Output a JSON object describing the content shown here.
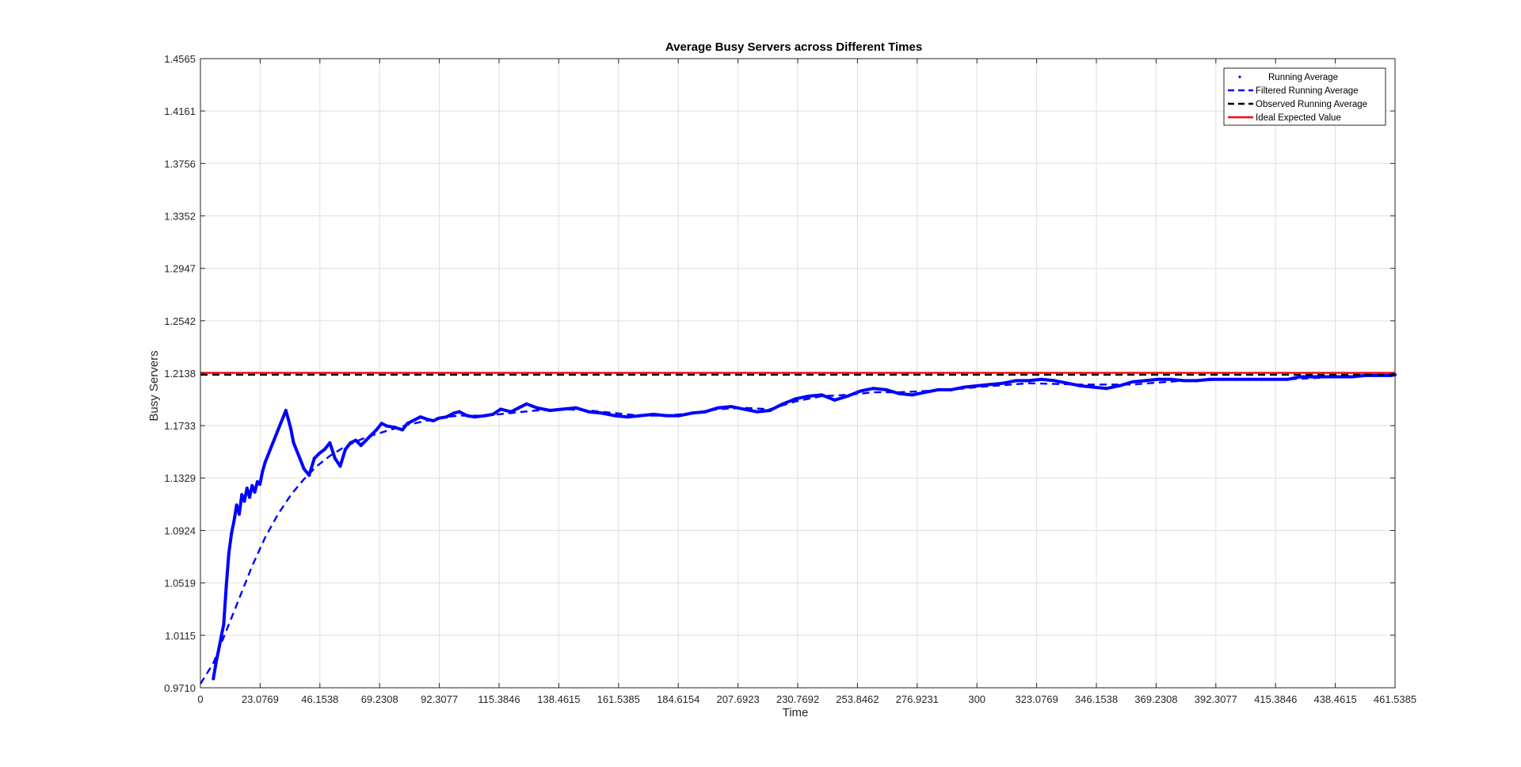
{
  "chart_data": {
    "type": "line",
    "title": "Average Busy Servers across Different Times",
    "xlabel": "Time",
    "ylabel": "Busy Servers",
    "xlim": [
      0,
      461.5385
    ],
    "ylim": [
      0.971,
      1.4565
    ],
    "x_ticks": [
      "0",
      "23.0769",
      "46.1538",
      "69.2308",
      "92.3077",
      "115.3846",
      "138.4615",
      "161.5385",
      "184.6154",
      "207.6923",
      "230.7692",
      "253.8462",
      "276.9231",
      "300",
      "323.0769",
      "346.1538",
      "369.2308",
      "392.3077",
      "415.3846",
      "438.4615",
      "461.5385"
    ],
    "y_ticks": [
      "0.9710",
      "1.0115",
      "1.0519",
      "1.0924",
      "1.1329",
      "1.1733",
      "1.2138",
      "1.2542",
      "1.2947",
      "1.3352",
      "1.3756",
      "1.4161",
      "1.4565"
    ],
    "grid": true,
    "legend_position": "top-right",
    "series": [
      {
        "name": "Running Average",
        "style": "dotted",
        "color": "#0000ff",
        "x": [
          5,
          6,
          7,
          8,
          9,
          10,
          11,
          12,
          13,
          14,
          15,
          16,
          17,
          18,
          19,
          20,
          21,
          22,
          23,
          24,
          25,
          26,
          28,
          30,
          31,
          32,
          33,
          34,
          35,
          36,
          38,
          40,
          42,
          44,
          46,
          48,
          50,
          52,
          54,
          56,
          58,
          60,
          62,
          64,
          66,
          68,
          70,
          72,
          75,
          78,
          80,
          82,
          85,
          88,
          90,
          92,
          95,
          98,
          100,
          103,
          106,
          110,
          113,
          116,
          120,
          123,
          126,
          130,
          135,
          140,
          145,
          150,
          155,
          160,
          165,
          170,
          175,
          180,
          185,
          190,
          195,
          200,
          205,
          210,
          215,
          220,
          225,
          230,
          235,
          240,
          245,
          250,
          255,
          260,
          265,
          270,
          275,
          280,
          285,
          290,
          295,
          300,
          305,
          310,
          315,
          320,
          325,
          330,
          335,
          340,
          345,
          350,
          355,
          360,
          365,
          370,
          375,
          380,
          385,
          390,
          395,
          400,
          405,
          410,
          415,
          420,
          425,
          430,
          435,
          440,
          445,
          450,
          455,
          460,
          461.5
        ],
        "y": [
          0.978,
          0.99,
          1.0,
          1.01,
          1.02,
          1.05,
          1.075,
          1.09,
          1.1,
          1.112,
          1.105,
          1.12,
          1.115,
          1.125,
          1.118,
          1.127,
          1.122,
          1.13,
          1.128,
          1.138,
          1.145,
          1.15,
          1.16,
          1.17,
          1.175,
          1.18,
          1.185,
          1.178,
          1.17,
          1.16,
          1.15,
          1.14,
          1.135,
          1.148,
          1.152,
          1.155,
          1.16,
          1.148,
          1.142,
          1.155,
          1.16,
          1.162,
          1.158,
          1.162,
          1.166,
          1.17,
          1.175,
          1.173,
          1.172,
          1.17,
          1.175,
          1.177,
          1.18,
          1.178,
          1.177,
          1.179,
          1.18,
          1.183,
          1.184,
          1.181,
          1.18,
          1.181,
          1.182,
          1.186,
          1.184,
          1.187,
          1.19,
          1.187,
          1.185,
          1.186,
          1.187,
          1.184,
          1.183,
          1.181,
          1.18,
          1.181,
          1.182,
          1.181,
          1.181,
          1.183,
          1.184,
          1.187,
          1.188,
          1.186,
          1.184,
          1.185,
          1.19,
          1.194,
          1.196,
          1.197,
          1.193,
          1.196,
          1.2,
          1.202,
          1.201,
          1.198,
          1.197,
          1.199,
          1.201,
          1.201,
          1.203,
          1.204,
          1.205,
          1.206,
          1.208,
          1.208,
          1.209,
          1.208,
          1.206,
          1.204,
          1.203,
          1.202,
          1.204,
          1.207,
          1.208,
          1.209,
          1.209,
          1.208,
          1.208,
          1.209,
          1.209,
          1.209,
          1.209,
          1.209,
          1.209,
          1.209,
          1.211,
          1.211,
          1.211,
          1.211,
          1.211,
          1.212,
          1.212,
          1.212,
          1.2125
        ]
      },
      {
        "name": "Filtered Running Average",
        "style": "dashed",
        "color": "#0000ff",
        "x": [
          0,
          5,
          10,
          15,
          20,
          25,
          30,
          35,
          40,
          45,
          50,
          55,
          60,
          65,
          70,
          75,
          80,
          85,
          90,
          95,
          100,
          110,
          120,
          130,
          140,
          150,
          160,
          170,
          180,
          190,
          200,
          210,
          220,
          230,
          240,
          250,
          260,
          270,
          280,
          290,
          300,
          320,
          340,
          360,
          380,
          400,
          420,
          440,
          461.5
        ],
        "y": [
          0.974,
          0.99,
          1.015,
          1.04,
          1.065,
          1.087,
          1.105,
          1.12,
          1.132,
          1.142,
          1.15,
          1.156,
          1.161,
          1.165,
          1.168,
          1.171,
          1.174,
          1.176,
          1.178,
          1.18,
          1.181,
          1.181,
          1.183,
          1.185,
          1.186,
          1.185,
          1.183,
          1.181,
          1.181,
          1.183,
          1.186,
          1.187,
          1.186,
          1.192,
          1.196,
          1.197,
          1.199,
          1.199,
          1.2,
          1.201,
          1.203,
          1.206,
          1.205,
          1.205,
          1.208,
          1.209,
          1.209,
          1.211,
          1.2125
        ]
      },
      {
        "name": "Observed Running Average",
        "style": "dashed",
        "color": "#000000",
        "x": [
          0,
          461.5385
        ],
        "y": [
          1.2126,
          1.2126
        ]
      },
      {
        "name": "Ideal Expected Value",
        "style": "solid",
        "color": "#ff0000",
        "x": [
          0,
          461.5385
        ],
        "y": [
          1.214,
          1.214
        ]
      }
    ]
  }
}
